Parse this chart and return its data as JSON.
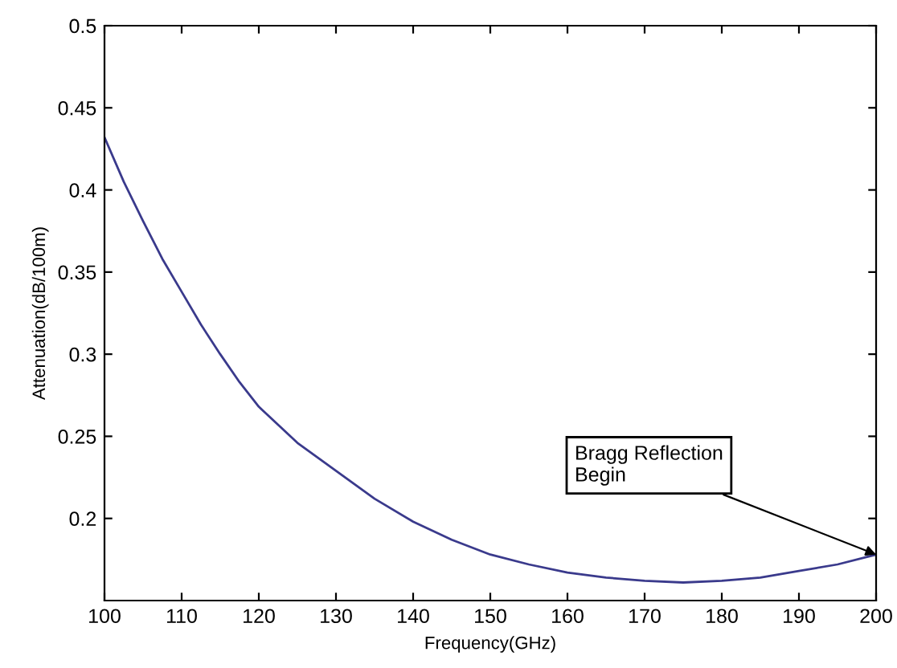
{
  "chart_data": {
    "type": "line",
    "xlabel": "Frequency(GHz)",
    "ylabel": "Attenuation(dB/100m)",
    "x": [
      100,
      102.5,
      105,
      107.5,
      110,
      112.5,
      115,
      117.5,
      120,
      125,
      130,
      135,
      140,
      145,
      150,
      155,
      160,
      165,
      170,
      175,
      180,
      185,
      190,
      195,
      200
    ],
    "series": [
      {
        "color": "#3a3a8c",
        "values": [
          0.432,
          0.405,
          0.381,
          0.358,
          0.338,
          0.318,
          0.3,
          0.283,
          0.268,
          0.246,
          0.229,
          0.212,
          0.198,
          0.187,
          0.178,
          0.172,
          0.167,
          0.164,
          0.162,
          0.161,
          0.162,
          0.164,
          0.168,
          0.172,
          0.178
        ]
      }
    ],
    "xlim": [
      100,
      200
    ],
    "xticks": [
      100,
      110,
      120,
      130,
      140,
      150,
      160,
      170,
      180,
      190,
      200
    ],
    "ylim": [
      0.15,
      0.5
    ],
    "yticks": [
      0.2,
      0.25,
      0.3,
      0.35,
      0.4,
      0.45,
      0.5
    ],
    "grid": false,
    "legend": false,
    "annotations": [
      {
        "text": "Bragg Reflection\nBegin",
        "x": 200,
        "y": 0.178
      }
    ]
  }
}
